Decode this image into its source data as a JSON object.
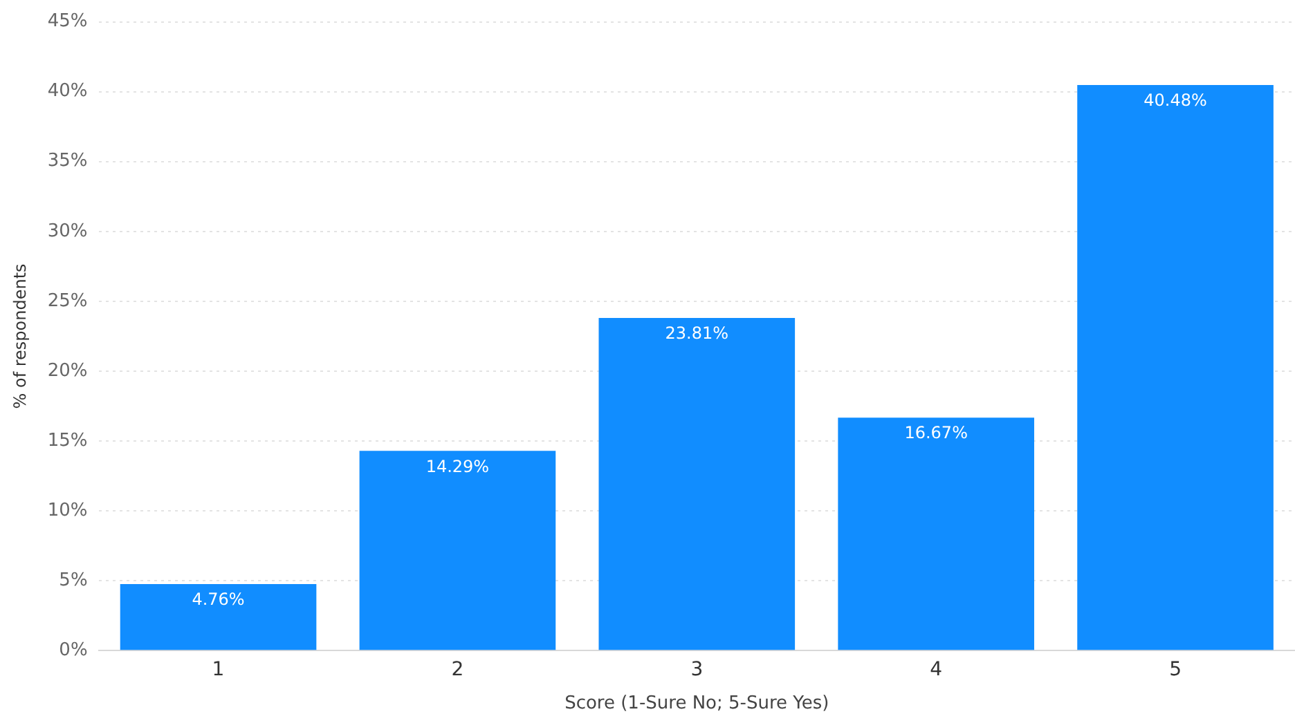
{
  "chart_data": {
    "type": "bar",
    "xlabel": "Score (1-Sure No; 5-Sure Yes)",
    "ylabel": "% of respondents",
    "categories": [
      "1",
      "2",
      "3",
      "4",
      "5"
    ],
    "values": [
      4.76,
      14.29,
      23.81,
      16.67,
      40.48
    ],
    "value_labels": [
      "4.76%",
      "14.29%",
      "23.81%",
      "16.67%",
      "40.48%"
    ],
    "color": "#118dff",
    "ylim": [
      0,
      45
    ],
    "yticks": [
      {
        "value": 0,
        "label": "0%"
      },
      {
        "value": 5,
        "label": "5%"
      },
      {
        "value": 10,
        "label": "10%"
      },
      {
        "value": 15,
        "label": "15%"
      },
      {
        "value": 20,
        "label": "20%"
      },
      {
        "value": 25,
        "label": "25%"
      },
      {
        "value": 30,
        "label": "30%"
      },
      {
        "value": 35,
        "label": "35%"
      },
      {
        "value": 40,
        "label": "40%"
      },
      {
        "value": 45,
        "label": "45%"
      }
    ],
    "grid": "y",
    "legend": false
  }
}
